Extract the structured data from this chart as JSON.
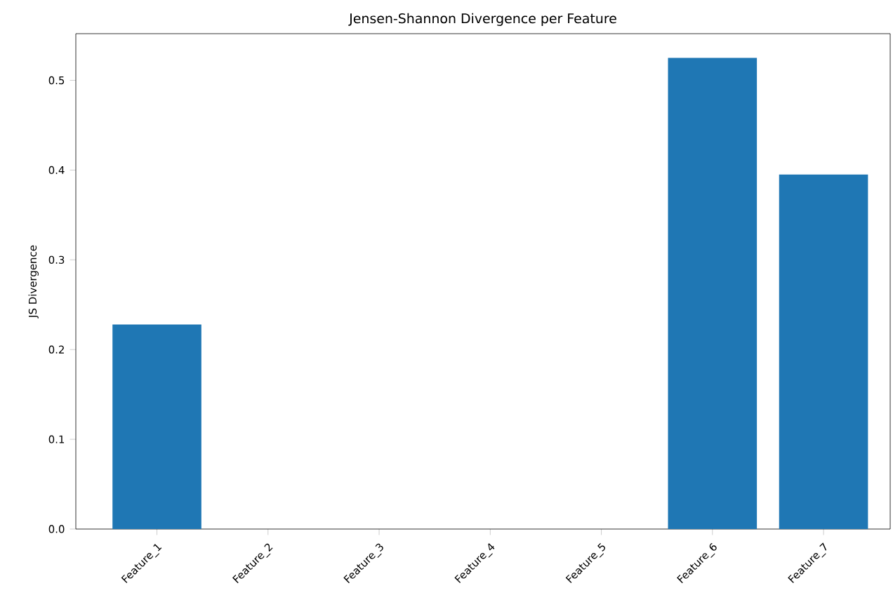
{
  "chart_data": {
    "type": "bar",
    "title": "Jensen-Shannon Divergence per Feature",
    "ylabel": "JS Divergence",
    "categories": [
      "Feature_1",
      "Feature_2",
      "Feature_3",
      "Feature_4",
      "Feature_5",
      "Feature_6",
      "Feature_7"
    ],
    "values": [
      0.228,
      0,
      0,
      0,
      0,
      0.525,
      0.395
    ],
    "color": "#1f77b4",
    "ylim": [
      0,
      0.552
    ],
    "yticks": [
      {
        "value": 0,
        "label": "0.0"
      },
      0.1,
      0.2,
      0.3,
      0.4,
      0.5
    ],
    "grid": false
  }
}
